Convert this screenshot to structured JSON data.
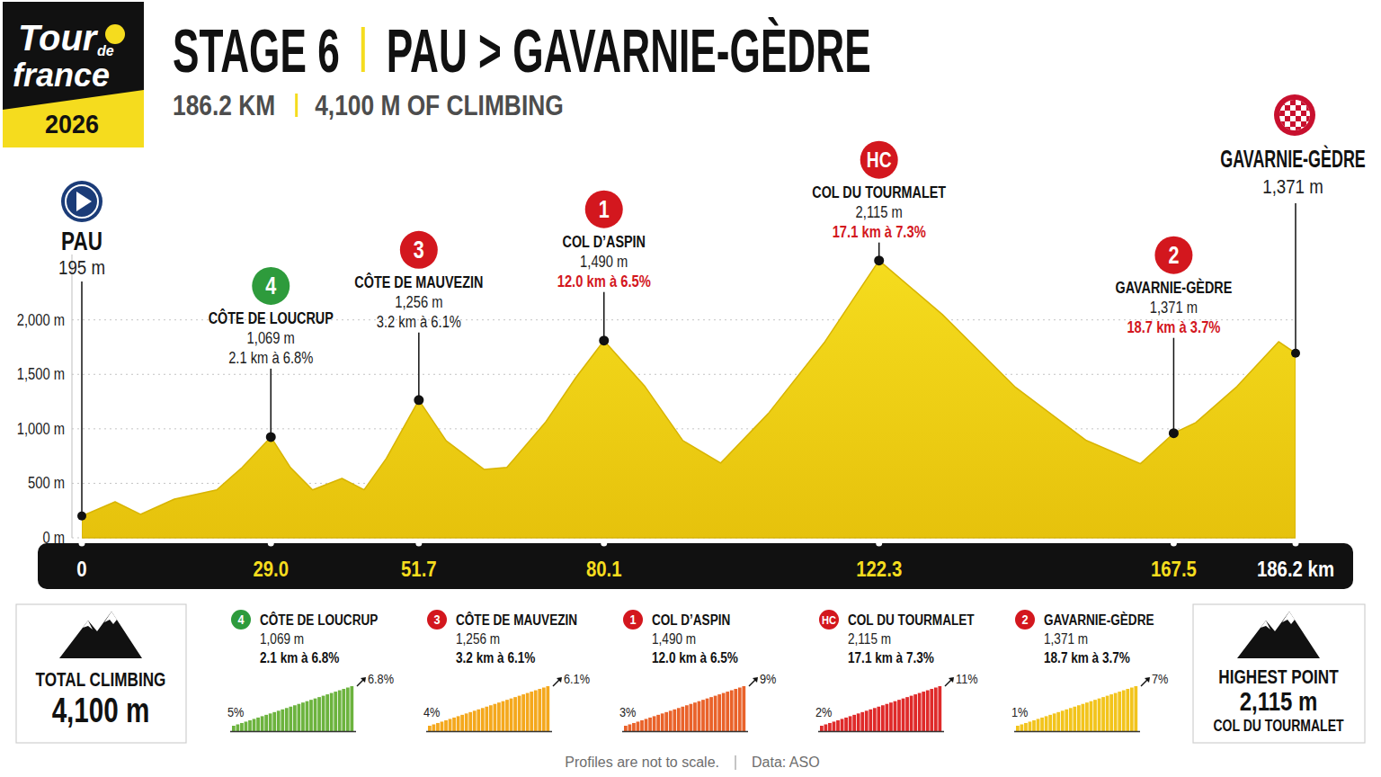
{
  "header": {
    "logo": {
      "text": [
        "Tour",
        "de",
        "france"
      ],
      "year": "2026"
    },
    "title": "STAGE 6",
    "route": "PAU > GAVARNIE-GÈDRE",
    "distance": "186.2 KM",
    "climbing": "4,100 M OF CLIMBING"
  },
  "chart_data": {
    "type": "area",
    "x": [
      0,
      5.1,
      9.0,
      14.2,
      20.7,
      24.6,
      29.0,
      32.0,
      35.4,
      39.9,
      43.3,
      46.7,
      51.7,
      55.9,
      61.7,
      65.2,
      71.1,
      75.8,
      80.1,
      86.4,
      92.2,
      98.0,
      105.3,
      114.0,
      122.3,
      132.0,
      143.1,
      154.1,
      162.4,
      167.5,
      170.9,
      177.2,
      183.6,
      186.2
    ],
    "values": [
      200,
      330,
      215,
      355,
      440,
      645,
      925,
      645,
      440,
      545,
      440,
      727,
      1264,
      890,
      628,
      645,
      1058,
      1471,
      1810,
      1388,
      893,
      686,
      1140,
      1800,
      2545,
      2050,
      1388,
      893,
      680,
      960,
      1058,
      1388,
      1800,
      1694
    ],
    "color": "#f5dc1e",
    "xlim": [
      0,
      186.2
    ],
    "xticks": [
      0,
      {
        "value": 29.0,
        "label": "29.0"
      },
      51.7,
      80.1,
      122.3,
      167.5,
      {
        "value": 186.2,
        "label": "186.2 km"
      }
    ],
    "ylim": [
      0,
      2600
    ],
    "yticks": [
      {
        "value": 0,
        "label": "0 m"
      },
      {
        "value": 500,
        "label": "500 m"
      },
      {
        "value": 1000,
        "label": "1,000 m"
      },
      {
        "value": 1500,
        "label": "1,500 m"
      },
      {
        "value": 2000,
        "label": "2,000 m"
      }
    ],
    "grid": true,
    "start": {
      "name": "PAU",
      "elevation": "195 m"
    },
    "finish": {
      "name": "GAVARNIE-GÈDRE",
      "elevation": "1,371 m"
    },
    "climbs": [
      {
        "km": 29.0,
        "category": "4",
        "name": "CÔTE DE LOUCRUP",
        "elevation": "1,069 m",
        "stats": "2.1 km à 6.8%",
        "badge_color": "#2e9b3c",
        "stats_color": "#1a1a1a",
        "gradient_start": "5%",
        "gradient_end": "6.8%",
        "color": "#6cb33e"
      },
      {
        "km": 51.7,
        "category": "3",
        "name": "CÔTE DE MAUVEZIN",
        "elevation": "1,256 m",
        "stats": "3.2 km à 6.1%",
        "badge_color": "#d3171e",
        "stats_color": "#1a1a1a",
        "gradient_start": "4%",
        "gradient_end": "6.1%",
        "color": "#f4a81d"
      },
      {
        "km": 80.1,
        "category": "1",
        "name": "COL D’ASPIN",
        "elevation": "1,490 m",
        "stats": "12.0 km à 6.5%",
        "badge_color": "#d3171e",
        "stats_color": "#d3171e",
        "gradient_start": "3%",
        "gradient_end": "9%",
        "color": "#e9622a"
      },
      {
        "km": 122.3,
        "category": "HC",
        "name": "COL DU TOURMALET",
        "elevation": "2,115 m",
        "stats": "17.1 km à 7.3%",
        "badge_color": "#d3171e",
        "stats_color": "#d3171e",
        "gradient_start": "2%",
        "gradient_end": "11%",
        "color": "#df2a2a"
      },
      {
        "km": 167.5,
        "category": "2",
        "name": "GAVARNIE-GÈDRE",
        "elevation": "1,371 m",
        "stats": "18.7 km à 3.7%",
        "badge_color": "#d3171e",
        "stats_color": "#d3171e",
        "gradient_start": "1%",
        "gradient_end": "7%",
        "color": "#f2c41c"
      }
    ]
  },
  "total_climbing": {
    "label": "TOTAL CLIMBING",
    "value": "4,100 m"
  },
  "highest_point": {
    "label": "HIGHEST POINT",
    "value": "2,115 m",
    "name": "COL DU TOURMALET"
  },
  "footer": [
    "Profiles are not to scale.",
    "Data: ASO"
  ]
}
